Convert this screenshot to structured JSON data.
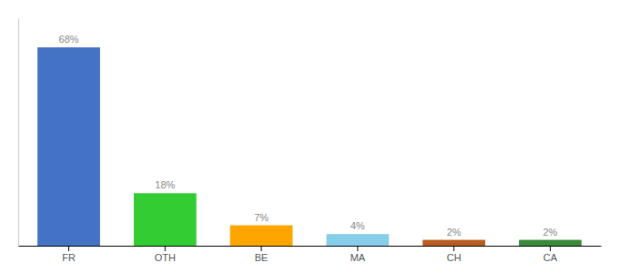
{
  "chart_data": {
    "type": "bar",
    "categories": [
      "FR",
      "OTH",
      "BE",
      "MA",
      "CH",
      "CA"
    ],
    "values": [
      68,
      18,
      7,
      4,
      2,
      2
    ],
    "value_labels": [
      "68%",
      "18%",
      "7%",
      "4%",
      "2%",
      "2%"
    ],
    "colors": [
      "#4472C4",
      "#33CC33",
      "#FFA500",
      "#87CEEB",
      "#B85C20",
      "#3A8A3A"
    ],
    "ylim": [
      0,
      78
    ],
    "data_labels": true,
    "tick_labels": "x"
  }
}
